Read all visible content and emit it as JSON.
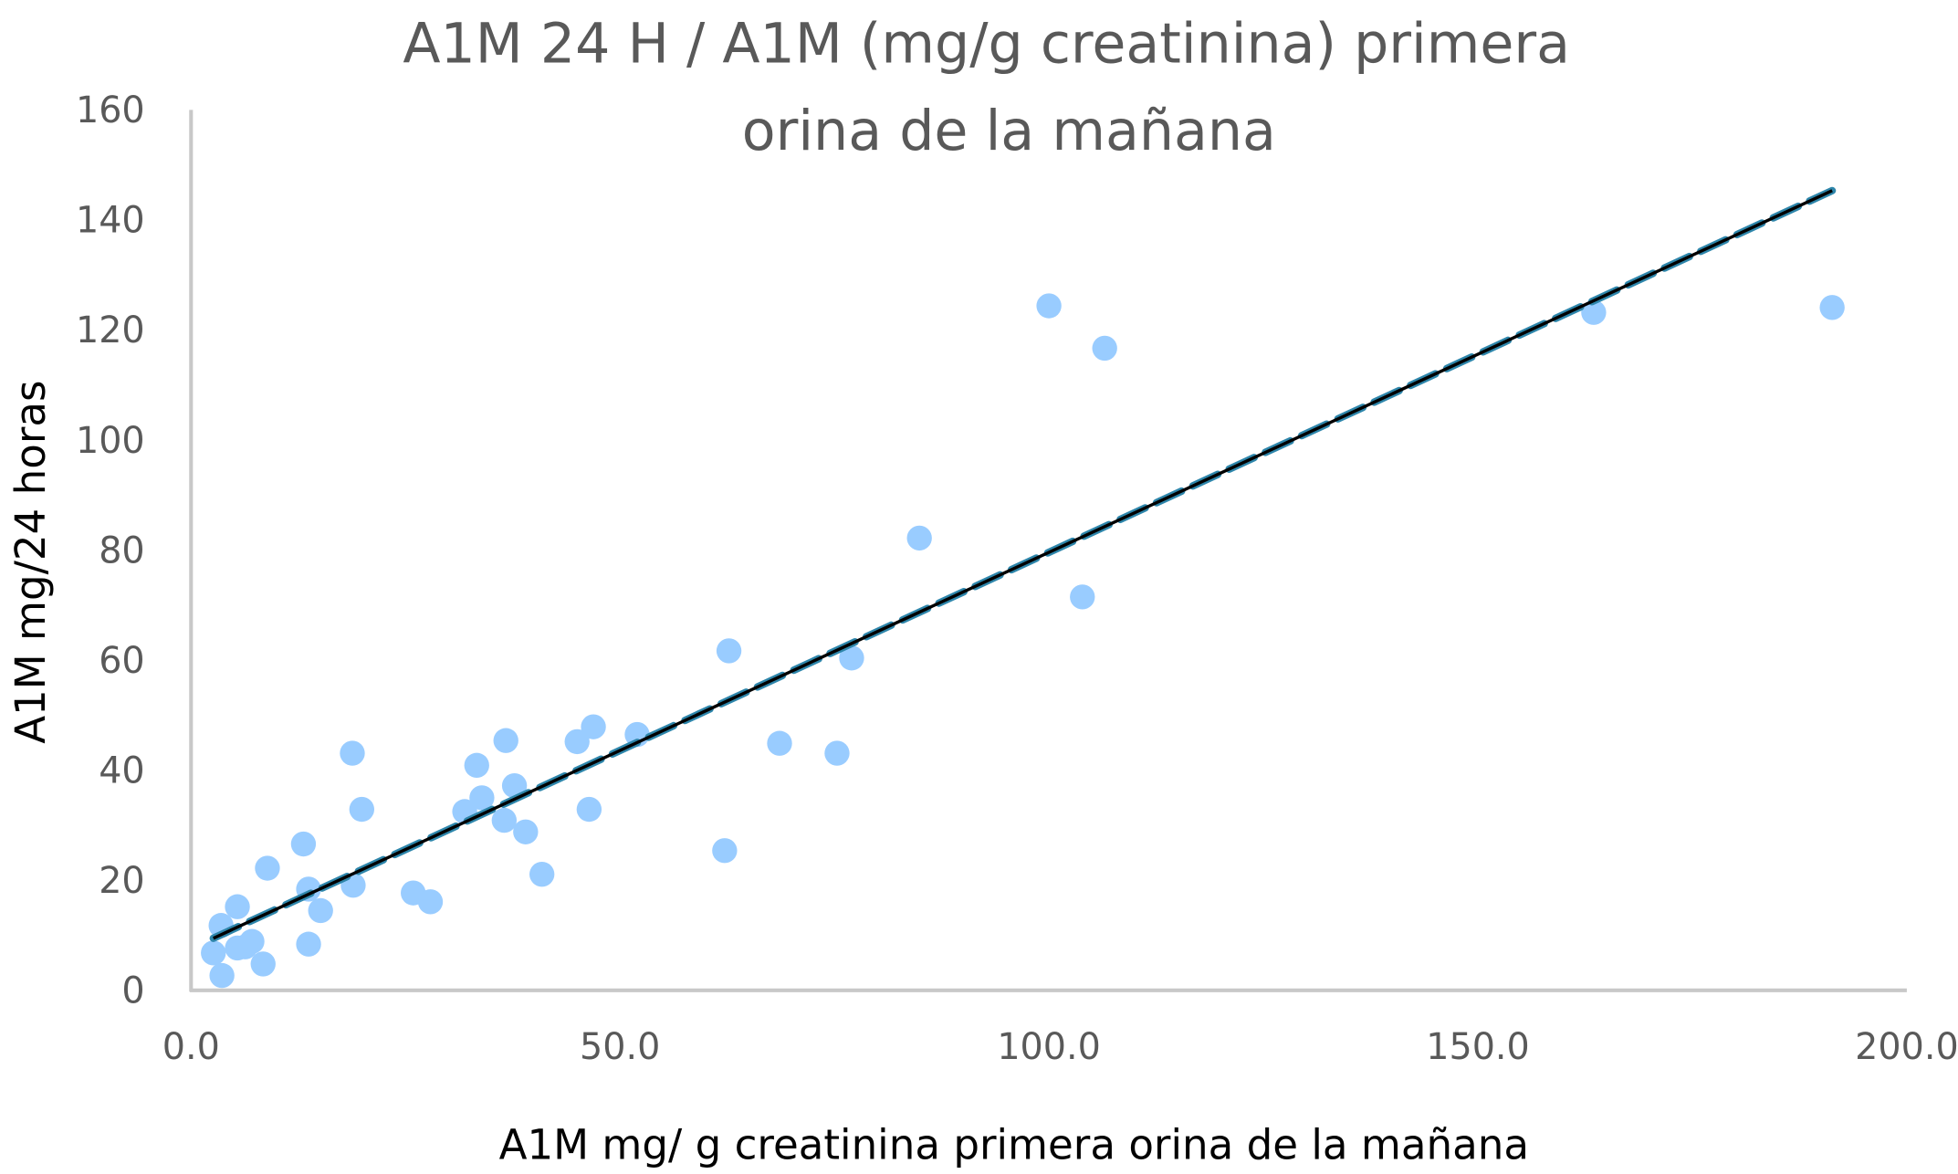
{
  "chart_data": {
    "type": "scatter",
    "title_lines": [
      "A1M 24 H / A1M (mg/g creatinina) primera",
      "orina de la mañana"
    ],
    "xlabel": "A1M  mg/ g creatinina primera orina de la mañana",
    "ylabel": "A1M mg/24 horas",
    "xlim": [
      0,
      200
    ],
    "ylim": [
      0,
      160
    ],
    "x_ticks": [
      "0.0",
      "50.0",
      "100.0",
      "150.0",
      "200.0"
    ],
    "x_tick_values": [
      0,
      50,
      100,
      150,
      200
    ],
    "y_ticks": [
      "0",
      "20",
      "40",
      "60",
      "80",
      "100",
      "120",
      "140",
      "160"
    ],
    "y_tick_values": [
      0,
      20,
      40,
      60,
      80,
      100,
      120,
      140,
      160
    ],
    "grid": false,
    "point_color": "#99CCFF",
    "trendline": {
      "type": "linear",
      "x_range": [
        2.6,
        191.3
      ],
      "slope": 0.72,
      "intercept": 7.6,
      "colors": [
        "#2E86AB",
        "#000000"
      ],
      "style": "dashed"
    },
    "points": [
      [
        2.6,
        6.8
      ],
      [
        3.5,
        11.8
      ],
      [
        3.6,
        2.7
      ],
      [
        5.4,
        15.2
      ],
      [
        5.4,
        7.7
      ],
      [
        6.3,
        7.9
      ],
      [
        7.1,
        8.9
      ],
      [
        8.4,
        4.8
      ],
      [
        8.9,
        22.2
      ],
      [
        13.1,
        26.6
      ],
      [
        13.7,
        18.4
      ],
      [
        13.7,
        8.4
      ],
      [
        15.1,
        14.5
      ],
      [
        18.8,
        43.1
      ],
      [
        18.9,
        19.1
      ],
      [
        19.9,
        32.9
      ],
      [
        25.9,
        17.7
      ],
      [
        27.9,
        16.1
      ],
      [
        31.9,
        32.5
      ],
      [
        33.3,
        40.9
      ],
      [
        33.9,
        35.0
      ],
      [
        36.5,
        30.9
      ],
      [
        36.7,
        45.4
      ],
      [
        37.7,
        37.2
      ],
      [
        39.0,
        28.8
      ],
      [
        40.9,
        21.1
      ],
      [
        45.0,
        45.2
      ],
      [
        46.4,
        32.9
      ],
      [
        46.9,
        47.9
      ],
      [
        52.0,
        46.5
      ],
      [
        62.2,
        25.4
      ],
      [
        62.7,
        61.7
      ],
      [
        68.6,
        44.9
      ],
      [
        75.3,
        43.1
      ],
      [
        77.0,
        60.4
      ],
      [
        84.9,
        82.2
      ],
      [
        100.0,
        124.4
      ],
      [
        103.9,
        71.5
      ],
      [
        106.5,
        116.7
      ],
      [
        163.5,
        123.2
      ],
      [
        191.3,
        124.1
      ]
    ]
  }
}
